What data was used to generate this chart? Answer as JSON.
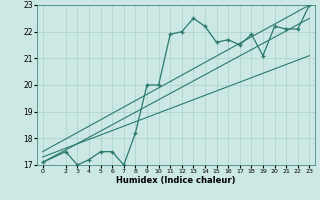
{
  "title": "",
  "xlabel": "Humidex (Indice chaleur)",
  "ylabel": "",
  "bg_color": "#cce8e4",
  "grid_color": "#b0d4ce",
  "line_color": "#2a7a6e",
  "xlim": [
    -0.5,
    23.5
  ],
  "ylim": [
    17,
    23
  ],
  "xticks": [
    0,
    2,
    3,
    4,
    5,
    6,
    7,
    8,
    9,
    10,
    11,
    12,
    13,
    14,
    15,
    16,
    17,
    18,
    19,
    20,
    21,
    22,
    23
  ],
  "yticks": [
    17,
    18,
    19,
    20,
    21,
    22,
    23
  ],
  "data_x": [
    0,
    2,
    3,
    4,
    5,
    6,
    7,
    8,
    9,
    10,
    11,
    12,
    13,
    14,
    15,
    16,
    17,
    18,
    19,
    20,
    21,
    22,
    23
  ],
  "data_y": [
    17.1,
    17.5,
    17.0,
    17.2,
    17.5,
    17.5,
    17.0,
    18.2,
    20.0,
    20.0,
    21.9,
    22.0,
    22.5,
    22.2,
    21.6,
    21.7,
    21.5,
    21.9,
    21.1,
    22.2,
    22.1,
    22.1,
    23.0
  ],
  "trend1_x": [
    0,
    23
  ],
  "trend1_y": [
    17.1,
    22.5
  ],
  "trend2_x": [
    0,
    23
  ],
  "trend2_y": [
    17.5,
    23.0
  ],
  "trend3_x": [
    0,
    23
  ],
  "trend3_y": [
    17.3,
    21.1
  ]
}
